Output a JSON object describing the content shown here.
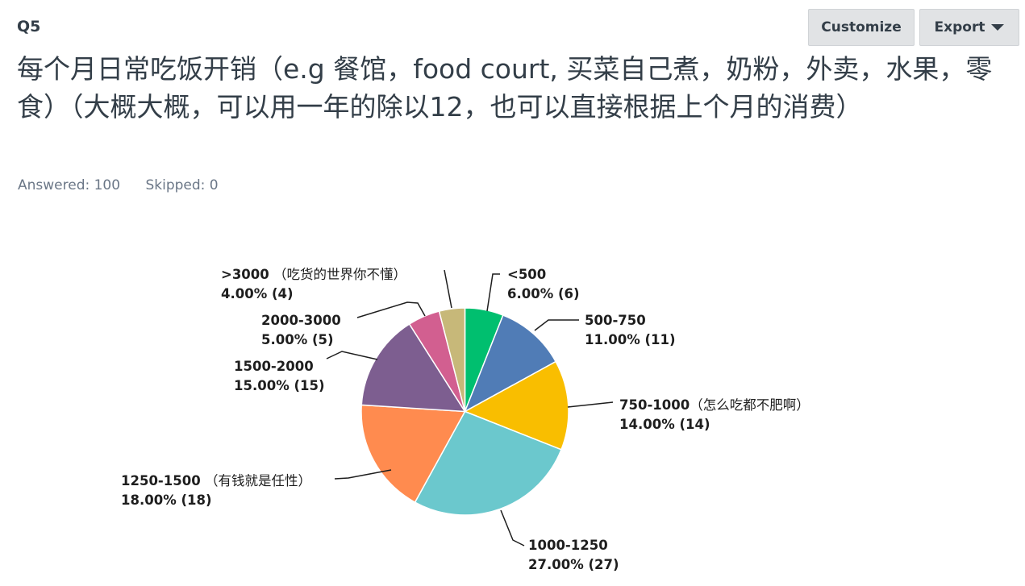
{
  "question": {
    "number": "Q5",
    "title": "每个月日常吃饭开销（e.g 餐馆，food court, 买菜自己煮，奶粉，外卖，水果，零食）（大概大概，可以用一年的除以12，也可以直接根据上个月的消费）"
  },
  "toolbar": {
    "customize_label": "Customize",
    "export_label": "Export"
  },
  "stats": {
    "answered": "Answered: 100",
    "skipped": "Skipped: 0"
  },
  "chart_data": {
    "type": "pie",
    "start_angle_deg": 0,
    "direction": "clockwise",
    "slices": [
      {
        "label": "<500",
        "note": "",
        "percent_text": "6.00% (6)",
        "value": 6,
        "color": "#00bf6f"
      },
      {
        "label": "500-750",
        "note": "",
        "percent_text": "11.00% (11)",
        "value": 11,
        "color": "#507cb6"
      },
      {
        "label": "750-1000",
        "note": "（怎么吃都不肥啊）",
        "percent_text": "14.00% (14)",
        "value": 14,
        "color": "#f9be00"
      },
      {
        "label": "1000-1250",
        "note": "",
        "percent_text": "27.00% (27)",
        "value": 27,
        "color": "#6bc8cd"
      },
      {
        "label": "1250-1500",
        "note": " （有钱就是任性）",
        "percent_text": "18.00% (18)",
        "value": 18,
        "color": "#ff8b4f"
      },
      {
        "label": "1500-2000",
        "note": "",
        "percent_text": "15.00% (15)",
        "value": 15,
        "color": "#7d5e90"
      },
      {
        "label": "2000-3000",
        "note": "",
        "percent_text": "5.00% (5)",
        "value": 5,
        "color": "#d25f90"
      },
      {
        "label": ">3000",
        "note": " （吃货的世界你不懂）",
        "percent_text": "4.00% (4)",
        "value": 4,
        "color": "#c7b879"
      }
    ]
  }
}
